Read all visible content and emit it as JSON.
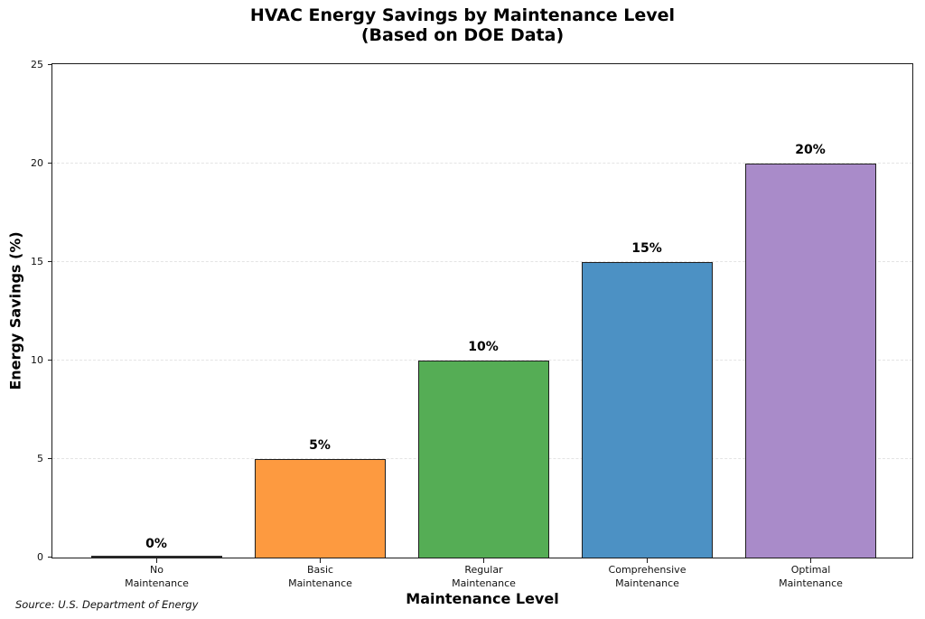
{
  "figure": {
    "title": "HVAC Energy Savings by Maintenance Level",
    "subtitle": "(Based on DOE Data)",
    "source_note": "Source: U.S. Department of Energy"
  },
  "chart_data": {
    "type": "bar",
    "title": "HVAC Energy Savings by Maintenance Level",
    "subtitle": "(Based on DOE Data)",
    "categories": [
      "No\nMaintenance",
      "Basic\nMaintenance",
      "Regular\nMaintenance",
      "Comprehensive\nMaintenance",
      "Optimal\nMaintenance"
    ],
    "values": [
      0,
      5,
      10,
      15,
      20
    ],
    "bar_labels": [
      "0%",
      "5%",
      "10%",
      "15%",
      "20%"
    ],
    "bar_colors": [
      null,
      "#fd9a40",
      "#55ad55",
      "#4c91c4",
      "#a98bc9"
    ],
    "bar_edge_color": "#1f1f1f",
    "xlabel": "Maintenance Level",
    "ylabel": "Energy Savings (%)",
    "ylim": [
      0,
      25
    ],
    "yticks": [
      0,
      5,
      10,
      15,
      20,
      25
    ],
    "grid": "horizontal dashed light-gray",
    "legend": "none",
    "source_note": "Source: U.S. Department of Energy"
  }
}
